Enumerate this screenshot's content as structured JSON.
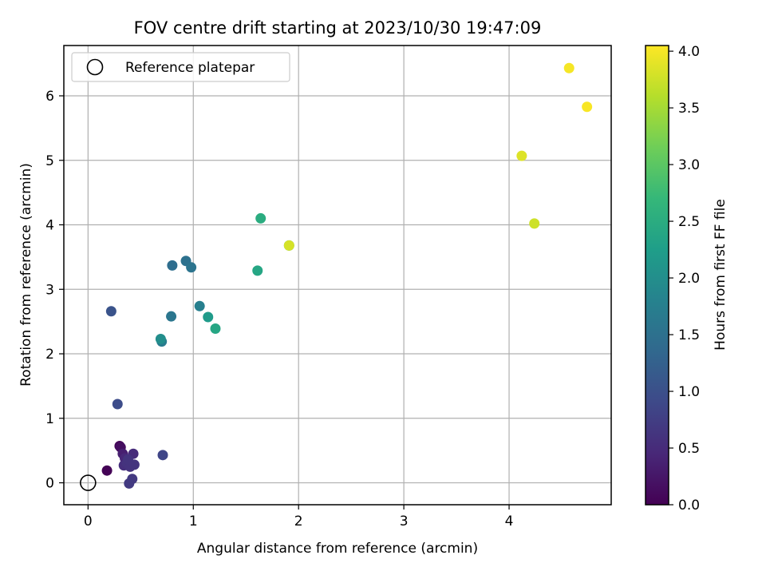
{
  "chart_data": {
    "type": "scatter",
    "title": "FOV centre drift starting at 2023/10/30 19:47:09",
    "xlabel": "Angular distance from reference (arcmin)",
    "ylabel": "Rotation from reference (arcmin)",
    "xlim": [
      -0.23,
      4.97
    ],
    "ylim": [
      -0.34,
      6.78
    ],
    "xticks": [
      0,
      1,
      2,
      3,
      4
    ],
    "xtick_labels": [
      "0",
      "1",
      "2",
      "3",
      "4"
    ],
    "yticks": [
      0,
      1,
      2,
      3,
      4,
      5,
      6
    ],
    "ytick_labels": [
      "0",
      "1",
      "2",
      "3",
      "4",
      "5",
      "6"
    ],
    "grid": true,
    "legend": {
      "placement": "upper-left",
      "entries": [
        "Reference platepar"
      ]
    },
    "reference_point": {
      "x": 0,
      "y": 0,
      "label": "Reference platepar",
      "marker": "open-circle",
      "color": "#000000"
    },
    "colormap": "viridis",
    "colormap_stops": [
      "#440154",
      "#482878",
      "#3e4989",
      "#31688e",
      "#26828e",
      "#1f9e89",
      "#35b779",
      "#6ece58",
      "#b5de2b",
      "#fde725"
    ],
    "colorbar": {
      "label": "Hours from first FF file",
      "range": [
        0,
        4.05
      ],
      "ticks": [
        0,
        0.5,
        1,
        1.5,
        2,
        2.5,
        3,
        3.5,
        4
      ],
      "tick_labels": [
        "0.0",
        "0.5",
        "1.0",
        "1.5",
        "2.0",
        "2.5",
        "3.0",
        "3.5",
        "4.0"
      ]
    },
    "points": [
      {
        "x": 0.18,
        "y": 0.19,
        "c": 0.02
      },
      {
        "x": 0.3,
        "y": 0.57,
        "c": 0.05
      },
      {
        "x": 0.31,
        "y": 0.55,
        "c": 0.15
      },
      {
        "x": 0.33,
        "y": 0.45,
        "c": 0.35
      },
      {
        "x": 0.35,
        "y": 0.38,
        "c": 0.45
      },
      {
        "x": 0.43,
        "y": 0.45,
        "c": 0.5
      },
      {
        "x": 0.34,
        "y": 0.27,
        "c": 0.55
      },
      {
        "x": 0.37,
        "y": 0.3,
        "c": 0.6
      },
      {
        "x": 0.4,
        "y": 0.25,
        "c": 0.6
      },
      {
        "x": 0.44,
        "y": 0.28,
        "c": 0.62
      },
      {
        "x": 0.38,
        "y": 0.36,
        "c": 0.62
      },
      {
        "x": 0.42,
        "y": 0.06,
        "c": 0.68
      },
      {
        "x": 0.39,
        "y": -0.01,
        "c": 0.7
      },
      {
        "x": 0.71,
        "y": 0.43,
        "c": 0.85
      },
      {
        "x": 0.28,
        "y": 1.22,
        "c": 0.95
      },
      {
        "x": 0.22,
        "y": 2.66,
        "c": 1.05
      },
      {
        "x": 0.8,
        "y": 3.37,
        "c": 1.45
      },
      {
        "x": 0.93,
        "y": 3.44,
        "c": 1.5
      },
      {
        "x": 0.98,
        "y": 3.34,
        "c": 1.55
      },
      {
        "x": 0.79,
        "y": 2.58,
        "c": 1.6
      },
      {
        "x": 0.7,
        "y": 2.19,
        "c": 1.7
      },
      {
        "x": 1.06,
        "y": 2.74,
        "c": 1.75
      },
      {
        "x": 0.69,
        "y": 2.23,
        "c": 2.0
      },
      {
        "x": 1.14,
        "y": 2.57,
        "c": 2.2
      },
      {
        "x": 1.21,
        "y": 2.39,
        "c": 2.4
      },
      {
        "x": 1.61,
        "y": 3.29,
        "c": 2.4
      },
      {
        "x": 1.64,
        "y": 4.1,
        "c": 2.5
      },
      {
        "x": 1.91,
        "y": 3.68,
        "c": 2.55
      },
      {
        "x": 1.91,
        "y": 3.68,
        "c": 3.8
      },
      {
        "x": 4.12,
        "y": 5.07,
        "c": 3.85
      },
      {
        "x": 4.24,
        "y": 4.02,
        "c": 3.75
      },
      {
        "x": 4.57,
        "y": 6.43,
        "c": 4.0
      },
      {
        "x": 4.74,
        "y": 5.83,
        "c": 4.02
      }
    ]
  }
}
